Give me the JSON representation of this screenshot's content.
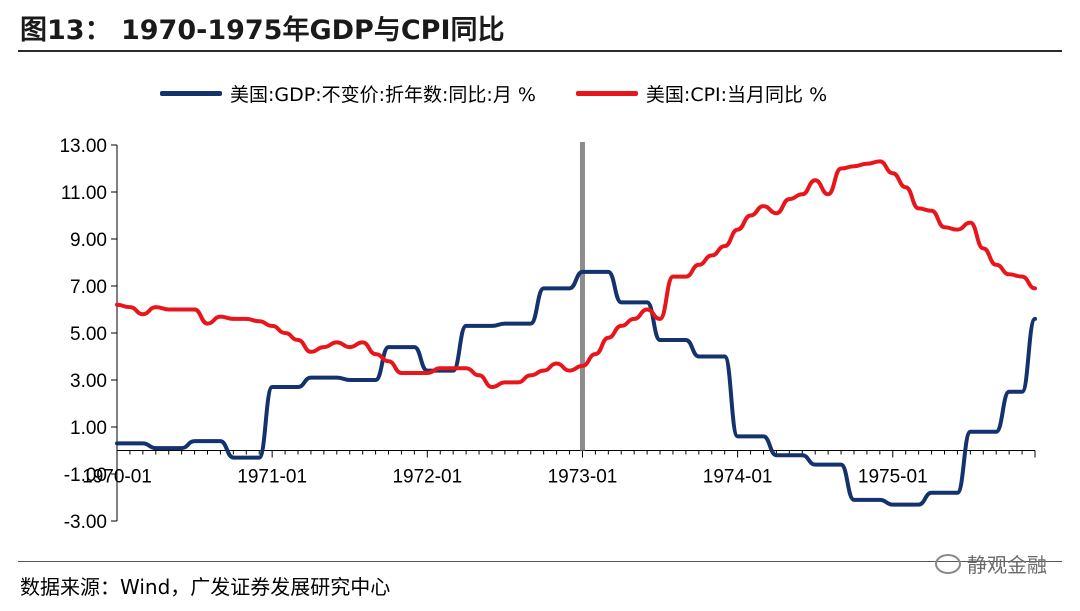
{
  "header": {
    "title": "图13：  1970-1975年GDP与CPI同比"
  },
  "footer": {
    "source": "数据来源：Wind，广发证券发展研究中心",
    "watermark": "静观金融"
  },
  "colors": {
    "gdp": "#14326e",
    "cpi": "#e8151b",
    "marker": "#8c8c8c",
    "axis": "#000000"
  },
  "chart_data": {
    "type": "line",
    "title": "1970-1975年GDP与CPI同比",
    "xlabel": "",
    "ylabel": "",
    "ylim": [
      -3,
      13
    ],
    "y_ticks": [
      "13.00",
      "11.00",
      "9.00",
      "7.00",
      "5.00",
      "3.00",
      "1.00",
      "-1.00",
      "-3.00"
    ],
    "x_ticks": [
      "1970-01",
      "1971-01",
      "1972-01",
      "1973-01",
      "1974-01",
      "1975-01"
    ],
    "x_range": [
      "1970-01",
      "1975-12"
    ],
    "grid": false,
    "legend": "top",
    "vertical_marker": "1973-01",
    "series": [
      {
        "name": "美国:GDP:不变价:折年数:同比:月 %",
        "color": "#14326e",
        "x": [
          "1970-01",
          "1970-02",
          "1970-03",
          "1970-04",
          "1970-05",
          "1970-06",
          "1970-07",
          "1970-08",
          "1970-09",
          "1970-10",
          "1970-11",
          "1970-12",
          "1971-01",
          "1971-02",
          "1971-03",
          "1971-04",
          "1971-05",
          "1971-06",
          "1971-07",
          "1971-08",
          "1971-09",
          "1971-10",
          "1971-11",
          "1971-12",
          "1972-01",
          "1972-02",
          "1972-03",
          "1972-04",
          "1972-05",
          "1972-06",
          "1972-07",
          "1972-08",
          "1972-09",
          "1972-10",
          "1972-11",
          "1972-12",
          "1973-01",
          "1973-02",
          "1973-03",
          "1973-04",
          "1973-05",
          "1973-06",
          "1973-07",
          "1973-08",
          "1973-09",
          "1973-10",
          "1973-11",
          "1973-12",
          "1974-01",
          "1974-02",
          "1974-03",
          "1974-04",
          "1974-05",
          "1974-06",
          "1974-07",
          "1974-08",
          "1974-09",
          "1974-10",
          "1974-11",
          "1974-12",
          "1975-01",
          "1975-02",
          "1975-03",
          "1975-04",
          "1975-05",
          "1975-06",
          "1975-07",
          "1975-08",
          "1975-09",
          "1975-10",
          "1975-11",
          "1975-12"
        ],
        "values": [
          0.3,
          0.3,
          0.3,
          0.1,
          0.1,
          0.1,
          0.4,
          0.4,
          0.4,
          -0.3,
          -0.3,
          -0.3,
          2.7,
          2.7,
          2.7,
          3.1,
          3.1,
          3.1,
          3.0,
          3.0,
          3.0,
          4.4,
          4.4,
          4.4,
          3.4,
          3.4,
          3.4,
          5.3,
          5.3,
          5.3,
          5.4,
          5.4,
          5.4,
          6.9,
          6.9,
          6.9,
          7.6,
          7.6,
          7.6,
          6.3,
          6.3,
          6.3,
          4.7,
          4.7,
          4.7,
          4.0,
          4.0,
          4.0,
          0.6,
          0.6,
          0.6,
          -0.2,
          -0.2,
          -0.2,
          -0.6,
          -0.6,
          -0.6,
          -2.1,
          -2.1,
          -2.1,
          -2.3,
          -2.3,
          -2.3,
          -1.8,
          -1.8,
          -1.8,
          0.8,
          0.8,
          0.8,
          2.5,
          2.5,
          5.6
        ]
      },
      {
        "name": "美国:CPI:当月同比 %",
        "color": "#e8151b",
        "x": [
          "1970-01",
          "1970-02",
          "1970-03",
          "1970-04",
          "1970-05",
          "1970-06",
          "1970-07",
          "1970-08",
          "1970-09",
          "1970-10",
          "1970-11",
          "1970-12",
          "1971-01",
          "1971-02",
          "1971-03",
          "1971-04",
          "1971-05",
          "1971-06",
          "1971-07",
          "1971-08",
          "1971-09",
          "1971-10",
          "1971-11",
          "1971-12",
          "1972-01",
          "1972-02",
          "1972-03",
          "1972-04",
          "1972-05",
          "1972-06",
          "1972-07",
          "1972-08",
          "1972-09",
          "1972-10",
          "1972-11",
          "1972-12",
          "1973-01",
          "1973-02",
          "1973-03",
          "1973-04",
          "1973-05",
          "1973-06",
          "1973-07",
          "1973-08",
          "1973-09",
          "1973-10",
          "1973-11",
          "1973-12",
          "1974-01",
          "1974-02",
          "1974-03",
          "1974-04",
          "1974-05",
          "1974-06",
          "1974-07",
          "1974-08",
          "1974-09",
          "1974-10",
          "1974-11",
          "1974-12",
          "1975-01",
          "1975-02",
          "1975-03",
          "1975-04",
          "1975-05",
          "1975-06",
          "1975-07",
          "1975-08",
          "1975-09",
          "1975-10",
          "1975-11",
          "1975-12"
        ],
        "values": [
          6.2,
          6.1,
          5.8,
          6.1,
          6.0,
          6.0,
          6.0,
          5.4,
          5.7,
          5.6,
          5.6,
          5.5,
          5.3,
          5.0,
          4.7,
          4.2,
          4.4,
          4.6,
          4.4,
          4.6,
          4.1,
          3.8,
          3.3,
          3.3,
          3.3,
          3.5,
          3.5,
          3.5,
          3.2,
          2.7,
          2.9,
          2.9,
          3.2,
          3.4,
          3.7,
          3.4,
          3.6,
          4.1,
          4.8,
          5.3,
          5.6,
          6.0,
          5.6,
          7.4,
          7.4,
          7.9,
          8.3,
          8.7,
          9.4,
          10.0,
          10.4,
          10.1,
          10.7,
          10.9,
          11.5,
          10.9,
          12.0,
          12.1,
          12.2,
          12.3,
          11.8,
          11.2,
          10.3,
          10.2,
          9.5,
          9.4,
          9.7,
          8.6,
          7.9,
          7.5,
          7.4,
          6.9
        ]
      }
    ]
  }
}
